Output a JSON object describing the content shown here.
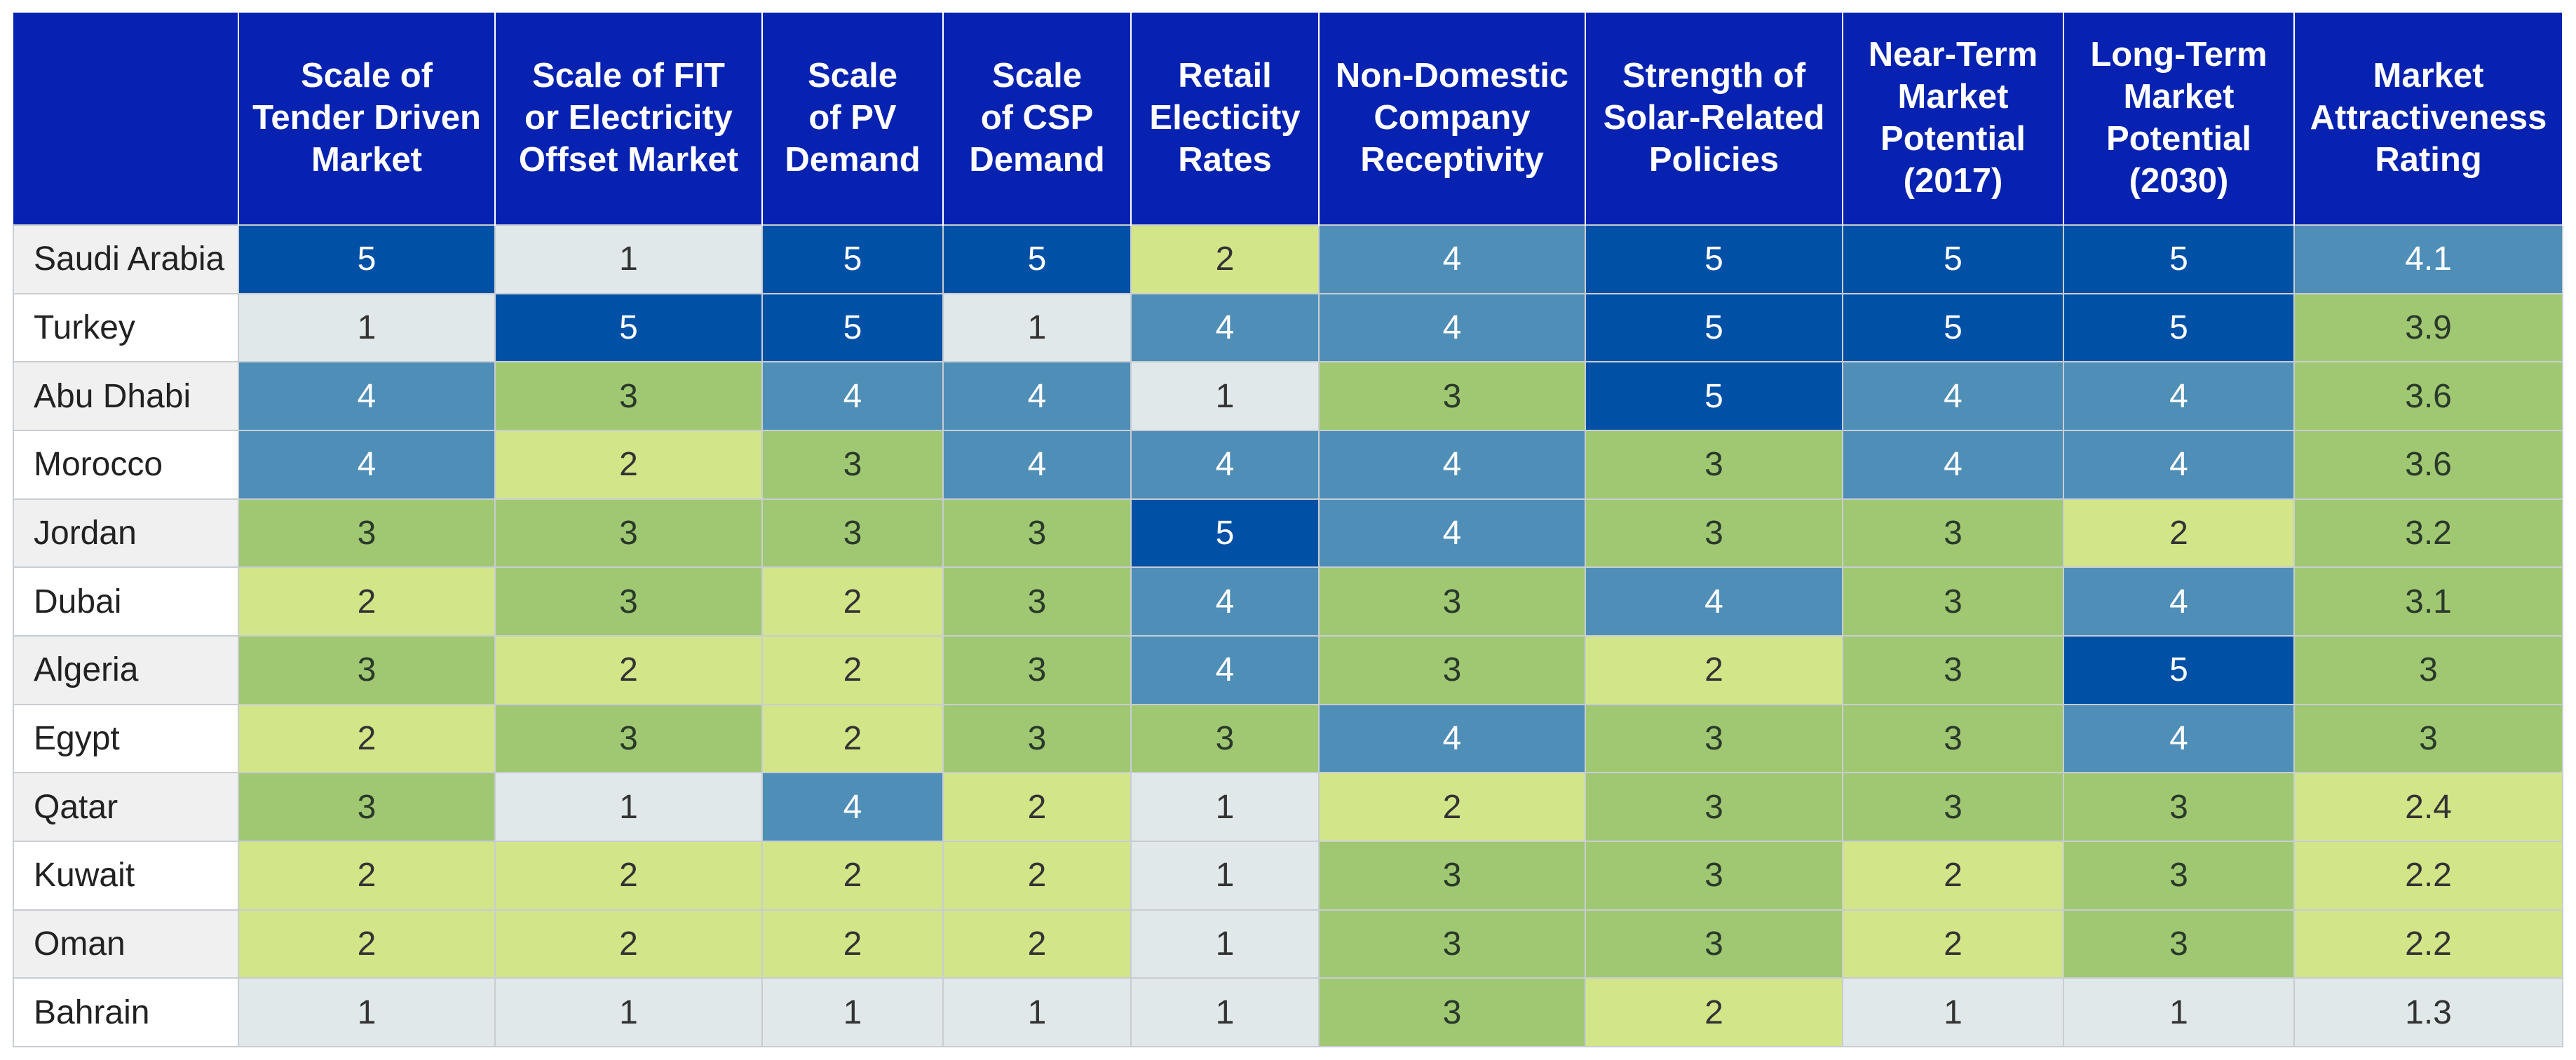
{
  "chart_data": {
    "type": "heatmap",
    "columns": [
      "Scale of Tender Driven Market",
      "Scale of FIT or Electricity Offset Market",
      "Scale of PV Demand",
      "Scale of CSP Demand",
      "Retail Electicity Rates",
      "Non-Domestic Company Receptivity",
      "Strength of Solar-Related Policies",
      "Near-Term Market Potential (2017)",
      "Long-Term Market Potential (2030)",
      "Market Attractiveness Rating"
    ],
    "rows": [
      {
        "country": "Saudi Arabia",
        "values": [
          5,
          1,
          5,
          5,
          2,
          4,
          5,
          5,
          5,
          4.1
        ]
      },
      {
        "country": "Turkey",
        "values": [
          1,
          5,
          5,
          1,
          4,
          4,
          5,
          5,
          5,
          3.9
        ]
      },
      {
        "country": "Abu Dhabi",
        "values": [
          4,
          3,
          4,
          4,
          1,
          3,
          5,
          4,
          4,
          3.6
        ]
      },
      {
        "country": "Morocco",
        "values": [
          4,
          2,
          3,
          4,
          4,
          4,
          3,
          4,
          4,
          3.6
        ]
      },
      {
        "country": "Jordan",
        "values": [
          3,
          3,
          3,
          3,
          5,
          4,
          3,
          3,
          2,
          3.2
        ]
      },
      {
        "country": "Dubai",
        "values": [
          2,
          3,
          2,
          3,
          4,
          3,
          4,
          3,
          4,
          3.1
        ]
      },
      {
        "country": "Algeria",
        "values": [
          3,
          2,
          2,
          3,
          4,
          3,
          2,
          3,
          5,
          3
        ]
      },
      {
        "country": "Egypt",
        "values": [
          2,
          3,
          2,
          3,
          3,
          4,
          3,
          3,
          4,
          3
        ]
      },
      {
        "country": "Qatar",
        "values": [
          3,
          1,
          4,
          2,
          1,
          2,
          3,
          3,
          3,
          2.4
        ]
      },
      {
        "country": "Kuwait",
        "values": [
          2,
          2,
          2,
          2,
          1,
          3,
          3,
          2,
          3,
          2.2
        ]
      },
      {
        "country": "Oman",
        "values": [
          2,
          2,
          2,
          2,
          1,
          3,
          3,
          2,
          3,
          2.2
        ]
      },
      {
        "country": "Bahrain",
        "values": [
          1,
          1,
          1,
          1,
          1,
          3,
          2,
          1,
          1,
          1.3
        ]
      }
    ],
    "rating_cell_levels": [
      4,
      3,
      3,
      3,
      3,
      3,
      3,
      3,
      2,
      2,
      2,
      1
    ],
    "color_scale": {
      "1": "#e0e8ea",
      "2": "#d2e589",
      "3": "#a0c873",
      "4": "#4f8eb7",
      "5": "#0050a6"
    },
    "header_color": "#0722b0"
  }
}
